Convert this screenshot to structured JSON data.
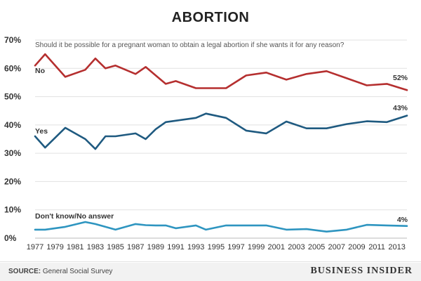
{
  "header": {
    "title": "ABORTION"
  },
  "chart_data": {
    "type": "line",
    "subtitle": "Should it be possible for a pregnant woman to obtain a legal abortion if she wants it for any reason?",
    "x_ticks": [
      "1977",
      "1979",
      "1981",
      "1983",
      "1985",
      "1987",
      "1989",
      "1991",
      "1993",
      "1995",
      "1997",
      "1999",
      "2001",
      "2003",
      "2005",
      "2007",
      "2009",
      "2011",
      "2013"
    ],
    "y_ticks": [
      "70%",
      "60%",
      "50%",
      "40%",
      "30%",
      "20%",
      "10%",
      "0%"
    ],
    "ylim": [
      0,
      70
    ],
    "xlim": [
      1977,
      2014
    ],
    "grid": true,
    "series": [
      {
        "name": "No",
        "color": "#b52f2f",
        "end_label": "52%",
        "points": [
          [
            1977,
            61
          ],
          [
            1978,
            65
          ],
          [
            1980,
            57
          ],
          [
            1982,
            59.5
          ],
          [
            1983,
            63.5
          ],
          [
            1984,
            60
          ],
          [
            1985,
            61
          ],
          [
            1987,
            58
          ],
          [
            1988,
            60.5
          ],
          [
            1989,
            57.5
          ],
          [
            1990,
            54.5
          ],
          [
            1991,
            55.5
          ],
          [
            1993,
            53
          ],
          [
            1994,
            53
          ],
          [
            1996,
            53
          ],
          [
            1998,
            57.5
          ],
          [
            2000,
            58.5
          ],
          [
            2002,
            56
          ],
          [
            2004,
            58
          ],
          [
            2006,
            59
          ],
          [
            2008,
            56.5
          ],
          [
            2010,
            54
          ],
          [
            2012,
            54.5
          ],
          [
            2014,
            52.3
          ]
        ]
      },
      {
        "name": "Yes",
        "color": "#1f5a80",
        "end_label": "43%",
        "points": [
          [
            1977,
            36
          ],
          [
            1978,
            32
          ],
          [
            1980,
            39
          ],
          [
            1982,
            35
          ],
          [
            1983,
            31.5
          ],
          [
            1984,
            36
          ],
          [
            1985,
            36
          ],
          [
            1987,
            37
          ],
          [
            1988,
            35
          ],
          [
            1989,
            38.5
          ],
          [
            1990,
            41
          ],
          [
            1991,
            41.5
          ],
          [
            1993,
            42.5
          ],
          [
            1994,
            44
          ],
          [
            1996,
            42.5
          ],
          [
            1998,
            38
          ],
          [
            2000,
            37
          ],
          [
            2002,
            41.2
          ],
          [
            2004,
            38.8
          ],
          [
            2006,
            38.8
          ],
          [
            2008,
            40.3
          ],
          [
            2010,
            41.3
          ],
          [
            2012,
            41
          ],
          [
            2014,
            43.3
          ]
        ]
      },
      {
        "name": "Don't know/No answer",
        "color": "#2e95c0",
        "end_label": "4%",
        "points": [
          [
            1977,
            3
          ],
          [
            1978,
            3
          ],
          [
            1980,
            4
          ],
          [
            1982,
            5.7
          ],
          [
            1983,
            5
          ],
          [
            1984,
            4
          ],
          [
            1985,
            3
          ],
          [
            1987,
            5
          ],
          [
            1988,
            4.6
          ],
          [
            1989,
            4.5
          ],
          [
            1990,
            4.5
          ],
          [
            1991,
            3.5
          ],
          [
            1993,
            4.5
          ],
          [
            1994,
            3
          ],
          [
            1996,
            4.5
          ],
          [
            1998,
            4.5
          ],
          [
            2000,
            4.5
          ],
          [
            2002,
            3
          ],
          [
            2004,
            3.2
          ],
          [
            2006,
            2.3
          ],
          [
            2008,
            3
          ],
          [
            2010,
            4.7
          ],
          [
            2012,
            4.5
          ],
          [
            2014,
            4.3
          ]
        ]
      }
    ]
  },
  "footer": {
    "source_label": "SOURCE:",
    "source_text": "General Social Survey",
    "brand": "BUSINESS INSIDER"
  }
}
